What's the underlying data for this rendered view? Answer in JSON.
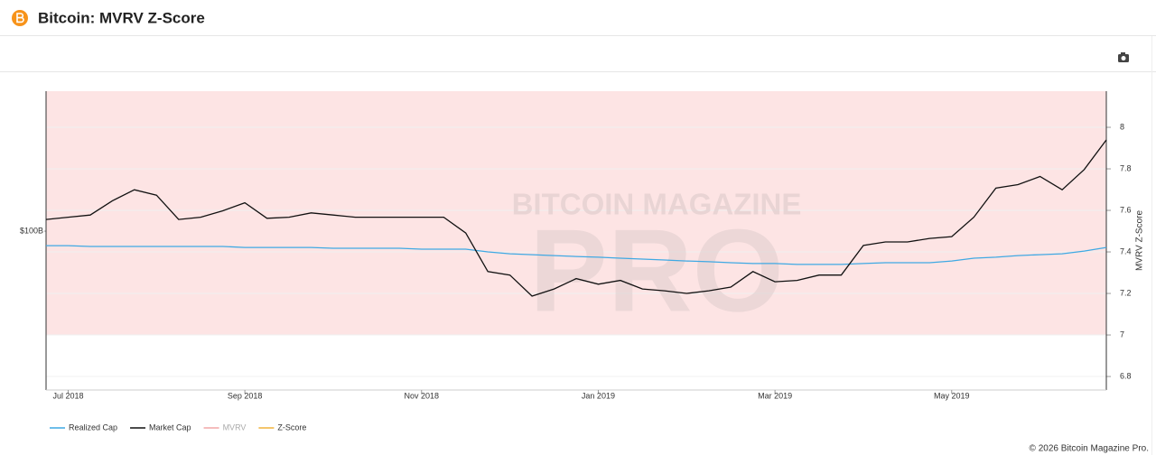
{
  "page_title": "Bitcoin: MVRV Z-Score",
  "credits": "© 2026 Bitcoin Magazine Pro.",
  "chart_data": {
    "type": "line",
    "watermark": {
      "top": "BITCOIN MAGAZINE",
      "bottom": "PRO"
    },
    "y2_label": "MVRV Z-Score",
    "categories": [
      null,
      "Jul 2018",
      null,
      null,
      null,
      null,
      null,
      null,
      null,
      "Sep 2018",
      null,
      null,
      null,
      null,
      null,
      null,
      null,
      "Nov 2018",
      null,
      null,
      null,
      null,
      null,
      null,
      null,
      "Jan 2019",
      null,
      null,
      null,
      null,
      null,
      null,
      null,
      "Mar 2019",
      null,
      null,
      null,
      null,
      null,
      null,
      null,
      "May 2019",
      null,
      null,
      null,
      null,
      null,
      null,
      null
    ],
    "log_scale": true,
    "ylim": [
      27500000000.0,
      312000000000.0
    ],
    "yticks": [
      {
        "value": 100000000000.0,
        "label": "$100B"
      }
    ],
    "y2lim": [
      6.735,
      8.174
    ],
    "y2ticks": [
      6.8,
      7,
      7.2,
      7.4,
      7.6,
      7.8,
      8
    ],
    "grid": true,
    "zones": [
      {
        "from": 7,
        "color": "#fde4e4",
        "axis": "y2"
      }
    ],
    "legend": "bottom-left",
    "series": [
      {
        "name": "Realized Cap",
        "color": "#3fa9e3",
        "values": [
          88900000000.0,
          88900000000.0,
          88300000000.0,
          88300000000.0,
          88300000000.0,
          88300000000.0,
          88300000000.0,
          88300000000.0,
          88300000000.0,
          87600000000.0,
          87600000000.0,
          87600000000.0,
          87600000000.0,
          87000000000.0,
          87000000000.0,
          87000000000.0,
          87000000000.0,
          86400000000.0,
          86400000000.0,
          86400000000.0,
          84500000000.0,
          83200000000.0,
          82600000000.0,
          82000000000.0,
          81400000000.0,
          80900000000.0,
          80300000000.0,
          79700000000.0,
          79100000000.0,
          78500000000.0,
          78000000000.0,
          77400000000.0,
          76900000000.0,
          76900000000.0,
          76300000000.0,
          76300000000.0,
          76300000000.0,
          76900000000.0,
          77400000000.0,
          77400000000.0,
          77400000000.0,
          78500000000.0,
          80300000000.0,
          80900000000.0,
          82000000000.0,
          82600000000.0,
          83200000000.0,
          85100000000.0,
          87600000000.0
        ]
      },
      {
        "name": "Market Cap",
        "color": "#111111",
        "values": [
          110000000000.0,
          112000000000.0,
          114000000000.0,
          128000000000.0,
          140000000000.0,
          134000000000.0,
          110000000000.0,
          112000000000.0,
          118000000000.0,
          126000000000.0,
          111000000000.0,
          112000000000.0,
          116000000000.0,
          114000000000.0,
          112000000000.0,
          112000000000.0,
          112000000000.0,
          112000000000.0,
          112000000000.0,
          98500000000.0,
          72000000000.0,
          70000000000.0,
          59000000000.0,
          62500000000.0,
          68000000000.0,
          65000000000.0,
          67000000000.0,
          62500000000.0,
          61600000000.0,
          60300000000.0,
          61600000000.0,
          63500000000.0,
          72000000000.0,
          66300000000.0,
          67000000000.0,
          70000000000.0,
          70000000000.0,
          89000000000.0,
          91600000000.0,
          91600000000.0,
          94300000000.0,
          95700000000.0,
          112000000000.0,
          142000000000.0,
          146000000000.0,
          156000000000.0,
          140000000000.0,
          165000000000.0,
          210000000000.0
        ]
      },
      {
        "name": "MVRV",
        "color": "#f2a7a7"
      },
      {
        "name": "Z-Score",
        "color": "#f0b33c"
      }
    ]
  }
}
